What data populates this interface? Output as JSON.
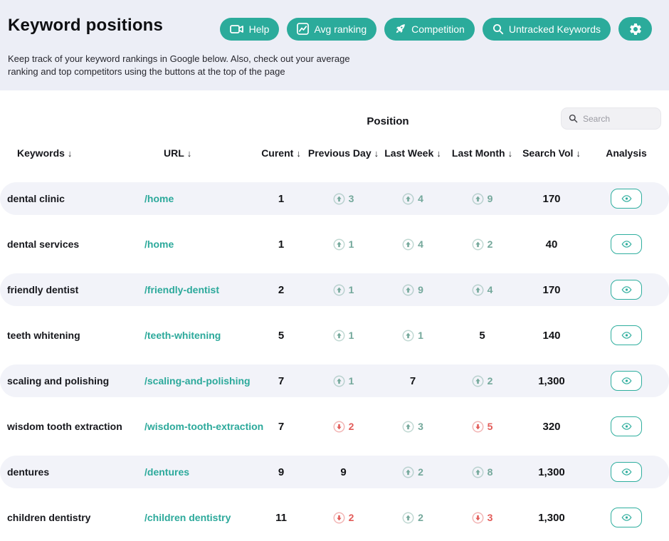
{
  "header": {
    "title": "Keyword positions",
    "description": "Keep track of your keyword rankings in Google below. Also, check out your average ranking and top competitors using the buttons at the top of the page",
    "buttons": [
      {
        "label": "Help",
        "icon": "video-camera-icon"
      },
      {
        "label": "Avg ranking",
        "icon": "line-chart-icon"
      },
      {
        "label": "Competition",
        "icon": "rocket-icon"
      },
      {
        "label": "Untracked Keywords",
        "icon": "search-icon"
      },
      {
        "label": "",
        "icon": "gear-icon"
      }
    ]
  },
  "search": {
    "placeholder": "Search"
  },
  "table": {
    "position_group_label": "Position",
    "columns": [
      {
        "label": "Keywords",
        "sortable": true
      },
      {
        "label": "URL",
        "sortable": true
      },
      {
        "label": "Curent",
        "sortable": true
      },
      {
        "label": "Previous Day",
        "sortable": true
      },
      {
        "label": "Last Week",
        "sortable": true
      },
      {
        "label": "Last Month",
        "sortable": true
      },
      {
        "label": "Search Vol",
        "sortable": true
      },
      {
        "label": "Analysis",
        "sortable": false
      }
    ],
    "rows": [
      {
        "keyword": "dental clinic",
        "url": "/home",
        "current": "1",
        "previous_day": {
          "dir": "up",
          "value": "3"
        },
        "last_week": {
          "dir": "up",
          "value": "4"
        },
        "last_month": {
          "dir": "up",
          "value": "9"
        },
        "search_vol": "170"
      },
      {
        "keyword": "dental services",
        "url": "/home",
        "current": "1",
        "previous_day": {
          "dir": "up",
          "value": "1"
        },
        "last_week": {
          "dir": "up",
          "value": "4"
        },
        "last_month": {
          "dir": "up",
          "value": "2"
        },
        "search_vol": "40"
      },
      {
        "keyword": "friendly dentist",
        "url": "/friendly-dentist",
        "current": "2",
        "previous_day": {
          "dir": "up",
          "value": "1"
        },
        "last_week": {
          "dir": "up",
          "value": "9"
        },
        "last_month": {
          "dir": "up",
          "value": "4"
        },
        "search_vol": "170"
      },
      {
        "keyword": "teeth whitening",
        "url": "/teeth-whitening",
        "current": "5",
        "previous_day": {
          "dir": "up",
          "value": "1"
        },
        "last_week": {
          "dir": "up",
          "value": "1"
        },
        "last_month": {
          "dir": "none",
          "value": "5"
        },
        "search_vol": "140"
      },
      {
        "keyword": "scaling and polishing",
        "url": "/scaling-and-polishing",
        "current": "7",
        "previous_day": {
          "dir": "up",
          "value": "1"
        },
        "last_week": {
          "dir": "none",
          "value": "7"
        },
        "last_month": {
          "dir": "up",
          "value": "2"
        },
        "search_vol": "1,300"
      },
      {
        "keyword": "wisdom tooth extraction",
        "url": "/wisdom-tooth-extraction",
        "current": "7",
        "previous_day": {
          "dir": "down",
          "value": "2"
        },
        "last_week": {
          "dir": "up",
          "value": "3"
        },
        "last_month": {
          "dir": "down",
          "value": "5"
        },
        "search_vol": "320"
      },
      {
        "keyword": "dentures",
        "url": "/dentures",
        "current": "9",
        "previous_day": {
          "dir": "none",
          "value": "9"
        },
        "last_week": {
          "dir": "up",
          "value": "2"
        },
        "last_month": {
          "dir": "up",
          "value": "8"
        },
        "search_vol": "1,300"
      },
      {
        "keyword": "children dentistry",
        "url": "/children dentistry",
        "current": "11",
        "previous_day": {
          "dir": "down",
          "value": "2"
        },
        "last_week": {
          "dir": "up",
          "value": "2"
        },
        "last_month": {
          "dir": "down",
          "value": "3"
        },
        "search_vol": "1,300"
      }
    ]
  },
  "colors": {
    "accent_teal": "#2BAB9B",
    "link_teal": "#2CA99B",
    "up_green": "#52BCAA",
    "down_red": "#E25B58",
    "header_band": "#ECEEF6",
    "row_shade": "#F2F3F9"
  }
}
